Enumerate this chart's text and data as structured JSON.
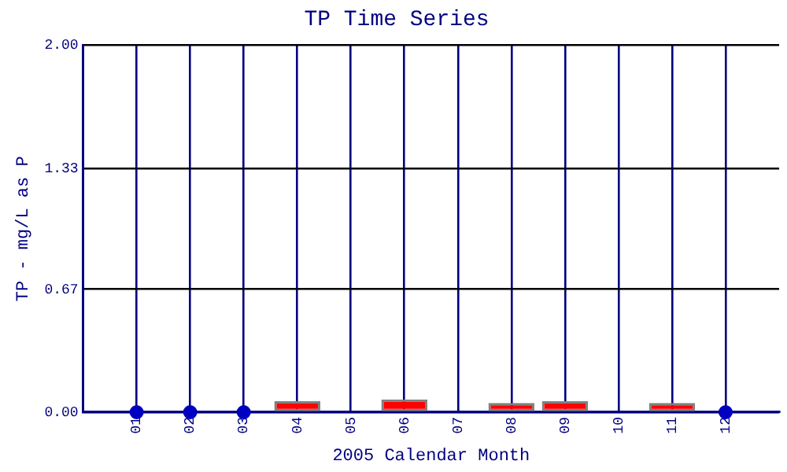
{
  "chart_data": {
    "type": "bar",
    "title": "TP Time Series",
    "xlabel": "2005 Calendar Month",
    "ylabel": "TP - mg/L as P",
    "x": [
      1,
      2,
      3,
      4,
      5,
      6,
      7,
      8,
      9,
      10,
      11,
      12
    ],
    "xlim": [
      0,
      13
    ],
    "xticks": [
      {
        "value": 1,
        "label": "01"
      },
      {
        "value": 2,
        "label": "02"
      },
      {
        "value": 3,
        "label": "03"
      },
      {
        "value": 4,
        "label": "04"
      },
      {
        "value": 5,
        "label": "05"
      },
      {
        "value": 6,
        "label": "06"
      },
      {
        "value": 7,
        "label": "07"
      },
      {
        "value": 8,
        "label": "08"
      },
      {
        "value": 9,
        "label": "09"
      },
      {
        "value": 10,
        "label": "10"
      },
      {
        "value": 11,
        "label": "11"
      },
      {
        "value": 12,
        "label": "12"
      }
    ],
    "ylim": [
      0,
      2
    ],
    "yticks": [
      {
        "value": 0,
        "label": "0.00"
      },
      {
        "value": 0.67,
        "label": "0.67"
      },
      {
        "value": 1.33,
        "label": "1.33"
      },
      {
        "value": 2,
        "label": "2.00"
      }
    ],
    "series": [
      {
        "color": "#ff0000",
        "values": [
          null,
          null,
          null,
          0.06,
          0,
          0.07,
          0,
          0.05,
          0.06,
          0,
          0.05,
          null
        ]
      },
      {
        "type": "scatter",
        "color": "#0000c0",
        "values": [
          0,
          0,
          0,
          null,
          null,
          null,
          null,
          null,
          null,
          null,
          null,
          0
        ]
      }
    ],
    "grid": true,
    "legend": false,
    "marker": "circle"
  }
}
